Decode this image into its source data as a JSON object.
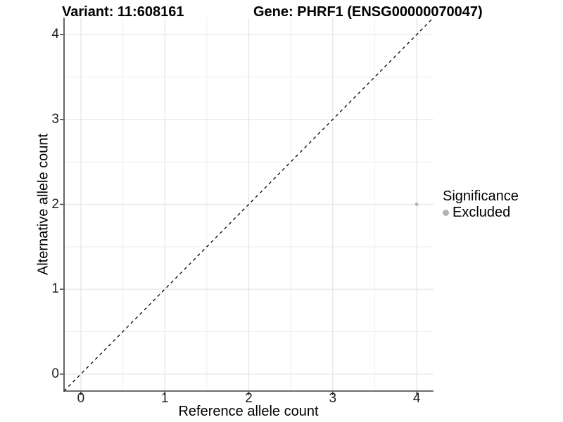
{
  "figure": {
    "title_left": "Variant: 11:608161",
    "title_right": "Gene: PHRF1 (ENSG00000070047)"
  },
  "chart_data": {
    "type": "scatter",
    "title": "Variant: 11:608161  /  Gene: PHRF1 (ENSG00000070047)",
    "xlabel": "Reference allele count",
    "ylabel": "Alternative allele count",
    "xlim": [
      -0.2,
      4.2
    ],
    "ylim": [
      -0.2,
      4.2
    ],
    "x_ticks": [
      0,
      1,
      2,
      3,
      4
    ],
    "y_ticks": [
      0,
      1,
      2,
      3,
      4
    ],
    "grid": {
      "major": true,
      "minor": true,
      "x_minor": [
        0.5,
        1.5,
        2.5,
        3.5
      ],
      "y_minor": [
        0.5,
        1.5,
        2.5,
        3.5
      ]
    },
    "reference_line": {
      "kind": "identity y=x",
      "style": "dashed",
      "color": "#000000",
      "span": "full-panel"
    },
    "series": [
      {
        "name": "Excluded",
        "marker": "circle",
        "color": "#b3b3b3",
        "points": [
          [
            4,
            2
          ]
        ]
      }
    ],
    "legend_position": "right",
    "legend": {
      "title": "Significance",
      "entries": [
        {
          "label": "Excluded",
          "color": "#b3b3b3"
        }
      ]
    }
  },
  "colors": {
    "background": "#ffffff",
    "grid_major": "#e5e5e5",
    "grid_minor": "#efefef",
    "axis_line": "#3d3d3d",
    "tick_mark": "#333333",
    "title_text": "#000000",
    "tick_text": "#1f1f1f",
    "point": "#b3b3b3"
  }
}
